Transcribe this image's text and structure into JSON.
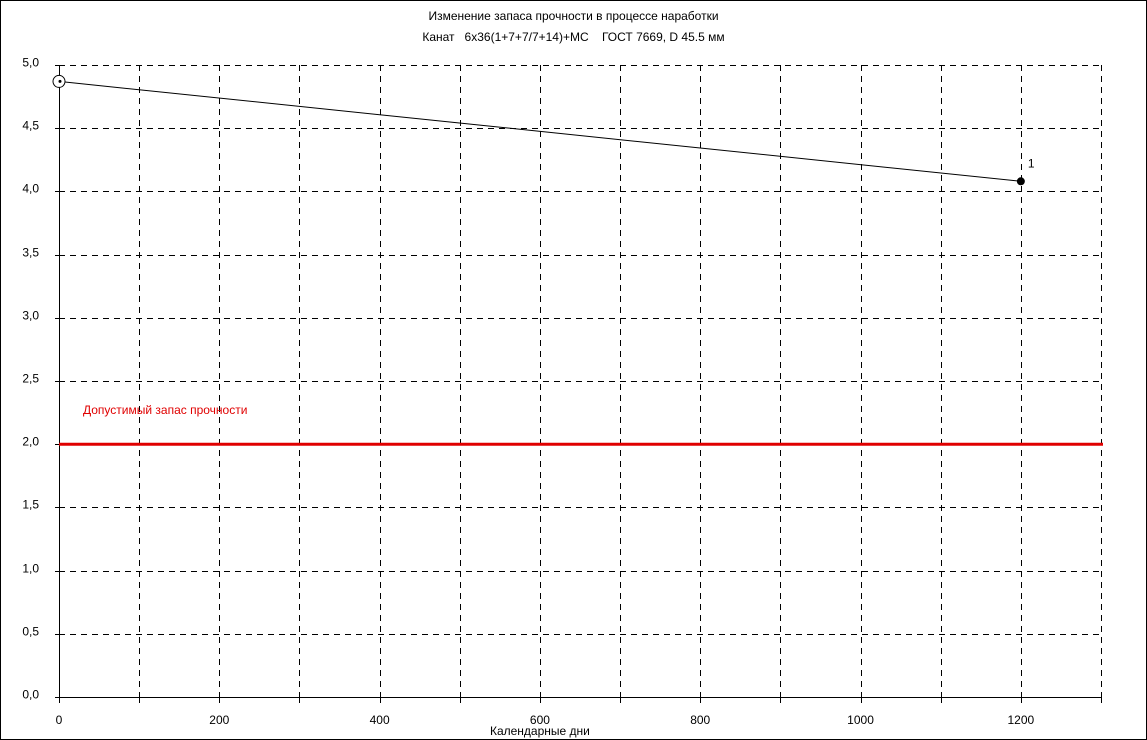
{
  "chart_data": {
    "type": "line",
    "title": "Изменение запаса прочности в процессе наработки",
    "subtitle": "Канат   6х36(1+7+7/7+14)+МС    ГОСТ 7669, D 45.5 мм",
    "xlabel": "Календарные дни",
    "ylabel": "",
    "xlim": [
      0,
      1300
    ],
    "ylim": [
      0,
      5
    ],
    "x_ticks": [
      0,
      200,
      400,
      600,
      800,
      1000,
      1200
    ],
    "y_ticks": [
      "0,0",
      "0,5",
      "1,0",
      "1,5",
      "2,0",
      "2,5",
      "3,0",
      "3,5",
      "4,0",
      "4,5",
      "5,0"
    ],
    "grid": "dashed, step 100 on x, step 0.5 on y",
    "series": [
      {
        "x": [
          0,
          1200
        ],
        "y": [
          4.87,
          4.08
        ],
        "point_labels": [
          "",
          "1"
        ],
        "start_marker": "circle-with-dot",
        "end_marker": "filled-circle",
        "color": "#000000"
      }
    ],
    "reference_line": {
      "y": 2.0,
      "label": "Допустимый запас прочности",
      "color": "#e00000"
    }
  }
}
